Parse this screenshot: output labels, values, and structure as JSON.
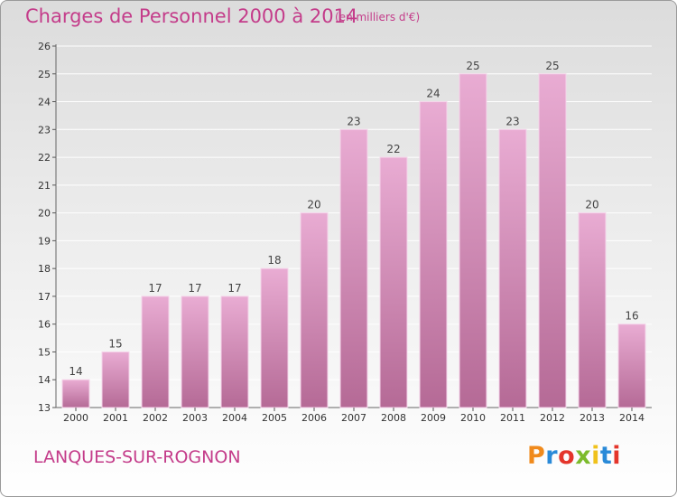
{
  "header": {
    "title": "Charges de Personnel 2000 à 2014",
    "subtitle": "(en milliers d'€)"
  },
  "footer": {
    "commune": "LANQUES-SUR-ROGNON",
    "logo_text": "Proxiti"
  },
  "colors": {
    "bar_top": "#e9acd3",
    "bar_bottom": "#b56a96",
    "bar_edge": "#f5d4ea",
    "accent": "#c43c8a",
    "logo": [
      "#f08a1c",
      "#2a8ad8",
      "#e4352b",
      "#7cbb2c",
      "#f0c21c",
      "#2a8ad8",
      "#e4352b"
    ]
  },
  "chart_data": {
    "type": "bar",
    "title": "Charges de Personnel 2000 à 2014",
    "subtitle": "(en milliers d'€)",
    "categories": [
      "2000",
      "2001",
      "2002",
      "2003",
      "2004",
      "2005",
      "2006",
      "2007",
      "2008",
      "2009",
      "2010",
      "2011",
      "2012",
      "2013",
      "2014"
    ],
    "values": [
      14,
      15,
      17,
      17,
      17,
      18,
      20,
      23,
      22,
      24,
      25,
      23,
      25,
      20,
      16
    ],
    "ylim": [
      13,
      26
    ],
    "yticks": [
      13,
      14,
      15,
      16,
      17,
      18,
      19,
      20,
      21,
      22,
      23,
      24,
      25,
      26
    ],
    "grid": true,
    "legend": "none"
  }
}
